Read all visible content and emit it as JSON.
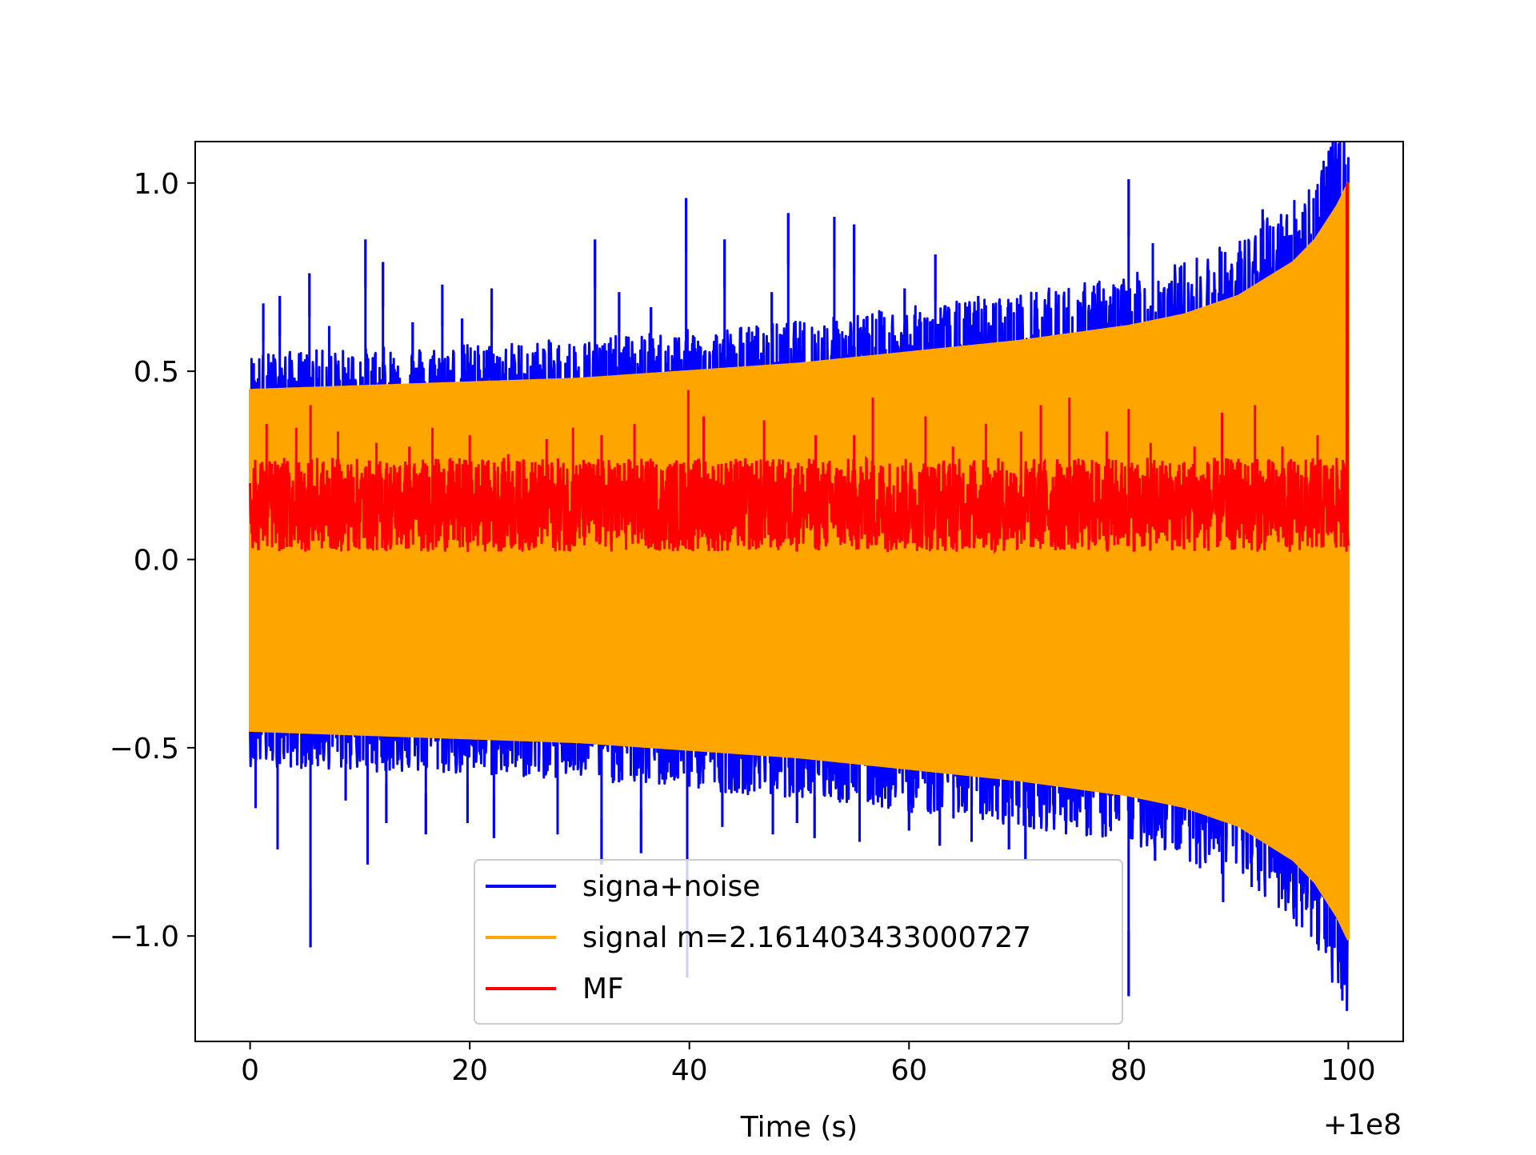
{
  "chart_data": {
    "type": "line",
    "title": "",
    "xlabel": "Time (s)",
    "ylabel": "",
    "x_offset_label": "+1e8",
    "xlim": [
      -5,
      105
    ],
    "ylim": [
      -1.28,
      1.11
    ],
    "xticks": [
      0,
      20,
      40,
      60,
      80,
      100
    ],
    "xtick_labels": [
      "0",
      "20",
      "40",
      "60",
      "80",
      "100"
    ],
    "yticks": [
      1.0,
      0.5,
      0.0,
      -0.5,
      -1.0
    ],
    "ytick_labels": [
      "1.0",
      "0.5",
      "0.0",
      "−0.5",
      "−1.0"
    ],
    "grid": false,
    "legend_position": "lower-center",
    "series": [
      {
        "name": "signa+noise",
        "color": "#0000ff",
        "description_values": {
          "x_range": [
            0,
            100
          ],
          "upper_peaks": [
            [
              0.2,
              0.45
            ],
            [
              1.2,
              0.68
            ],
            [
              2.7,
              0.7
            ],
            [
              5.4,
              0.76
            ],
            [
              7.2,
              0.62
            ],
            [
              10.5,
              0.85
            ],
            [
              12.1,
              0.79
            ],
            [
              14.8,
              0.63
            ],
            [
              17.5,
              0.73
            ],
            [
              19.3,
              0.64
            ],
            [
              22.0,
              0.72
            ],
            [
              26.7,
              0.56
            ],
            [
              31.4,
              0.85
            ],
            [
              33.6,
              0.71
            ],
            [
              36.5,
              0.67
            ],
            [
              39.7,
              0.96
            ],
            [
              43.2,
              0.85
            ],
            [
              47.5,
              0.71
            ],
            [
              49.0,
              0.92
            ],
            [
              53.2,
              0.91
            ],
            [
              55.0,
              0.89
            ],
            [
              59.6,
              0.72
            ],
            [
              62.4,
              0.81
            ],
            [
              66.3,
              0.7
            ],
            [
              69.0,
              0.67
            ],
            [
              71.6,
              0.71
            ],
            [
              75.9,
              0.6
            ],
            [
              79.0,
              0.72
            ],
            [
              80.0,
              1.01
            ],
            [
              82.2,
              0.84
            ],
            [
              86.2,
              0.72
            ],
            [
              87.2,
              0.67
            ],
            [
              91.0,
              0.79
            ],
            [
              92.2,
              0.93
            ],
            [
              94.6,
              0.77
            ],
            [
              96.8,
              0.82
            ],
            [
              99.0,
              1.0
            ]
          ],
          "lower_peaks": [
            [
              0.2,
              -0.33
            ],
            [
              0.5,
              -0.66
            ],
            [
              2.5,
              -0.77
            ],
            [
              5.5,
              -1.03
            ],
            [
              8.7,
              -0.64
            ],
            [
              10.7,
              -0.81
            ],
            [
              12.4,
              -0.7
            ],
            [
              16.0,
              -0.73
            ],
            [
              19.8,
              -0.7
            ],
            [
              22.2,
              -0.74
            ],
            [
              28.0,
              -0.73
            ],
            [
              32.0,
              -0.81
            ],
            [
              35.6,
              -0.78
            ],
            [
              39.8,
              -1.11
            ],
            [
              43.0,
              -0.71
            ],
            [
              47.6,
              -0.73
            ],
            [
              49.8,
              -0.7
            ],
            [
              51.4,
              -0.74
            ],
            [
              55.5,
              -0.75
            ],
            [
              60.0,
              -0.72
            ],
            [
              62.8,
              -0.76
            ],
            [
              65.7,
              -0.75
            ],
            [
              69.1,
              -0.77
            ],
            [
              70.6,
              -0.8
            ],
            [
              75.3,
              -0.69
            ],
            [
              78.3,
              -0.71
            ],
            [
              80.0,
              -1.16
            ],
            [
              82.4,
              -0.8
            ],
            [
              86.5,
              -0.82
            ],
            [
              88.6,
              -0.91
            ],
            [
              91.2,
              -0.87
            ],
            [
              94.3,
              -0.83
            ],
            [
              97.4,
              -0.9
            ]
          ]
        }
      },
      {
        "name": "signal m=2.161403433000727",
        "color": "#ffa500",
        "envelope": [
          [
            0,
            0.45
          ],
          [
            10,
            0.46
          ],
          [
            20,
            0.47
          ],
          [
            30,
            0.48
          ],
          [
            40,
            0.5
          ],
          [
            50,
            0.52
          ],
          [
            60,
            0.55
          ],
          [
            70,
            0.58
          ],
          [
            80,
            0.62
          ],
          [
            85,
            0.65
          ],
          [
            90,
            0.7
          ],
          [
            95,
            0.79
          ],
          [
            97,
            0.85
          ],
          [
            99,
            0.94
          ],
          [
            100,
            1.0
          ]
        ]
      },
      {
        "name": "MF",
        "color": "#ff0000",
        "band": [
          0.0,
          0.25
        ],
        "spike": [
          [
            99.9,
            1.0
          ]
        ],
        "peaks_upper": [
          [
            1.5,
            0.36
          ],
          [
            4.2,
            0.35
          ],
          [
            5.5,
            0.41
          ],
          [
            8.0,
            0.34
          ],
          [
            11.5,
            0.31
          ],
          [
            14.5,
            0.3
          ],
          [
            16.6,
            0.35
          ],
          [
            20.0,
            0.33
          ],
          [
            23.5,
            0.28
          ],
          [
            27.0,
            0.32
          ],
          [
            29.4,
            0.35
          ],
          [
            32.0,
            0.33
          ],
          [
            35.0,
            0.36
          ],
          [
            39.9,
            0.45
          ],
          [
            41.3,
            0.38
          ],
          [
            46.8,
            0.37
          ],
          [
            51.5,
            0.33
          ],
          [
            55.0,
            0.33
          ],
          [
            56.7,
            0.43
          ],
          [
            61.5,
            0.38
          ],
          [
            64.0,
            0.3
          ],
          [
            67.0,
            0.36
          ],
          [
            70.2,
            0.34
          ],
          [
            72.0,
            0.41
          ],
          [
            74.6,
            0.43
          ],
          [
            78.0,
            0.34
          ],
          [
            80.0,
            0.4
          ],
          [
            82.0,
            0.31
          ],
          [
            86.0,
            0.3
          ],
          [
            88.5,
            0.39
          ],
          [
            91.5,
            0.41
          ],
          [
            94.0,
            0.3
          ],
          [
            97.2,
            0.33
          ]
        ]
      }
    ]
  }
}
